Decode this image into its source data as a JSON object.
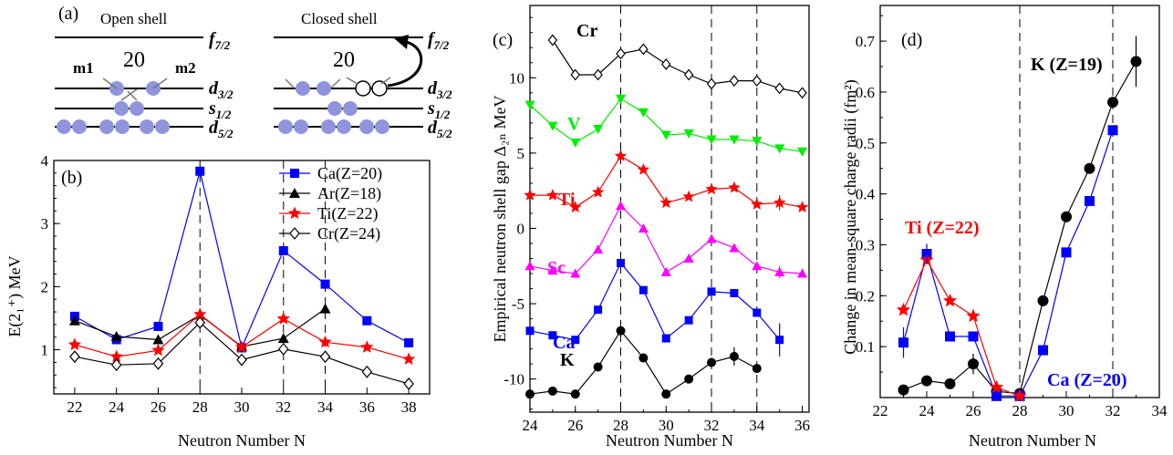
{
  "panels": {
    "a": {
      "label": "(a)",
      "left_title": "Open shell",
      "right_title": "Closed shell",
      "magic_left": "20",
      "magic_right": "20",
      "m1": "m1",
      "m2": "m2",
      "orbitals": [
        {
          "name": "f",
          "sub": "7/2"
        },
        {
          "name": "d",
          "sub": "3/2"
        },
        {
          "name": "s",
          "sub": "1/2"
        },
        {
          "name": "d",
          "sub": "5/2"
        }
      ]
    },
    "b": {
      "label": "(b)"
    },
    "c": {
      "label": "(c)"
    },
    "d": {
      "label": "(d)"
    }
  },
  "colors": {
    "Ca": "#0000ff",
    "Ar": "#000000",
    "Ti": "#ff0000",
    "Cr": "#000000",
    "V": "#00ee00",
    "Sc": "#ff00ff",
    "K": "#000000",
    "orbital_fill": "#8f94dd"
  },
  "chart_data": [
    {
      "panel": "b",
      "type": "line",
      "xlabel": "Neutron Number N",
      "ylabel": "E(2₁⁺) MeV",
      "xlim": [
        21,
        39
      ],
      "ylim": [
        0.3,
        4.0
      ],
      "xticks": [
        22,
        24,
        26,
        28,
        30,
        32,
        34,
        36,
        38
      ],
      "yticks": [
        1,
        2,
        3,
        4
      ],
      "vlines": [
        28,
        32,
        34
      ],
      "legend_position": "top-right",
      "series": [
        {
          "name": "Ca(Z=20)",
          "marker": "square",
          "x": [
            22,
            24,
            26,
            28,
            30,
            32,
            34,
            36,
            38
          ],
          "y": [
            1.53,
            1.16,
            1.37,
            3.83,
            1.03,
            2.57,
            2.04,
            1.46,
            1.11
          ]
        },
        {
          "name": "Ar(Z=18)",
          "marker": "triangle",
          "x": [
            22,
            24,
            26,
            28,
            30,
            32,
            34
          ],
          "y": [
            1.46,
            1.21,
            1.16,
            1.55,
            1.05,
            1.18,
            1.65
          ]
        },
        {
          "name": "Ti(Z=22)",
          "marker": "star",
          "x": [
            22,
            24,
            26,
            28,
            30,
            32,
            34,
            36,
            38
          ],
          "y": [
            1.08,
            0.89,
            0.99,
            1.56,
            1.04,
            1.49,
            1.12,
            1.04,
            0.85
          ]
        },
        {
          "name": "Cr(Z=24)",
          "marker": "diamond",
          "x": [
            22,
            24,
            26,
            28,
            30,
            32,
            34,
            36,
            38
          ],
          "y": [
            0.89,
            0.76,
            0.78,
            1.43,
            0.84,
            1.01,
            0.89,
            0.65,
            0.46
          ]
        }
      ]
    },
    {
      "panel": "c",
      "type": "line",
      "xlabel": "Neutron Number N",
      "ylabel": "Empirical neutron shell gap Δ₂ₙ MeV",
      "xlim": [
        24,
        36.3
      ],
      "ylim": [
        -12.2,
        14.8
      ],
      "xticks": [
        24,
        26,
        28,
        30,
        32,
        34,
        36
      ],
      "yticks": [
        -10,
        -5,
        0,
        5,
        10
      ],
      "vlines": [
        28,
        32,
        34
      ],
      "series": [
        {
          "name": "Cr",
          "marker": "diamond",
          "x": [
            25,
            26,
            27,
            28,
            29,
            30,
            31,
            32,
            33,
            34,
            35,
            36
          ],
          "y": [
            12.5,
            10.2,
            10.2,
            11.6,
            11.9,
            10.9,
            10.2,
            9.6,
            9.8,
            9.8,
            9.3,
            9.0
          ]
        },
        {
          "name": "V",
          "marker": "triangle-down",
          "x": [
            24,
            25,
            26,
            27,
            28,
            29,
            30,
            31,
            32,
            33,
            34,
            35,
            36
          ],
          "y": [
            8.2,
            6.8,
            5.7,
            6.6,
            8.6,
            7.7,
            6.2,
            6.3,
            5.9,
            5.9,
            5.8,
            5.3,
            5.1
          ]
        },
        {
          "name": "Ti",
          "marker": "star",
          "x": [
            24,
            25,
            26,
            27,
            28,
            29,
            30,
            31,
            32,
            33,
            34,
            35,
            36
          ],
          "y": [
            2.2,
            2.2,
            1.4,
            2.4,
            4.8,
            3.9,
            1.7,
            2.1,
            2.6,
            2.7,
            1.6,
            1.7,
            1.4
          ]
        },
        {
          "name": "Sc",
          "marker": "triangle",
          "x": [
            24,
            25,
            26,
            27,
            28,
            29,
            30,
            31,
            32,
            33,
            34,
            35,
            36
          ],
          "y": [
            -2.5,
            -2.8,
            -3.0,
            -1.4,
            1.5,
            0.0,
            -2.9,
            -2.0,
            -0.7,
            -1.3,
            -2.5,
            -2.9,
            -3.0
          ]
        },
        {
          "name": "Ca",
          "marker": "square",
          "x": [
            24,
            25,
            26,
            27,
            28,
            29,
            30,
            31,
            32,
            33,
            34,
            35
          ],
          "y": [
            -6.8,
            -7.1,
            -7.4,
            -5.4,
            -2.3,
            -4.1,
            -7.3,
            -6.1,
            -4.2,
            -4.3,
            -5.6,
            -7.4
          ]
        },
        {
          "name": "K",
          "marker": "circle",
          "x": [
            24,
            25,
            26,
            27,
            28,
            29,
            30,
            31,
            32,
            33,
            34
          ],
          "y": [
            -11.0,
            -10.8,
            -11.0,
            -9.2,
            -6.8,
            -8.6,
            -11.0,
            -10.0,
            -8.9,
            -8.5,
            -9.3
          ]
        }
      ]
    },
    {
      "panel": "d",
      "type": "line",
      "xlabel": "Neutron Number N",
      "ylabel": "Change in mean-square charge radii (fm²)",
      "xlim": [
        22,
        34
      ],
      "ylim": [
        0,
        0.77
      ],
      "xticks": [
        22,
        24,
        26,
        28,
        30,
        32,
        34
      ],
      "yticks": [
        0.1,
        0.2,
        0.3,
        0.4,
        0.5,
        0.6,
        0.7
      ],
      "vlines": [
        28,
        32
      ],
      "series": [
        {
          "name": "K (Z=19)",
          "marker": "circle",
          "x": [
            23,
            24,
            25,
            26,
            27,
            28,
            29,
            30,
            31,
            32,
            33
          ],
          "y": [
            0.015,
            0.033,
            0.027,
            0.066,
            0.012,
            0.008,
            0.19,
            0.355,
            0.45,
            0.58,
            0.66
          ]
        },
        {
          "name": "Ca (Z=20)",
          "marker": "square",
          "x": [
            23,
            24,
            25,
            26,
            27,
            28,
            29,
            30,
            31,
            32
          ],
          "y": [
            0.108,
            0.282,
            0.12,
            0.12,
            0.003,
            0.003,
            0.093,
            0.285,
            0.386,
            0.525
          ]
        },
        {
          "name": "Ti (Z=22)",
          "marker": "star",
          "x": [
            23,
            24,
            25,
            26,
            27,
            28
          ],
          "y": [
            0.172,
            0.27,
            0.19,
            0.16,
            0.02,
            0.003
          ]
        }
      ]
    }
  ]
}
